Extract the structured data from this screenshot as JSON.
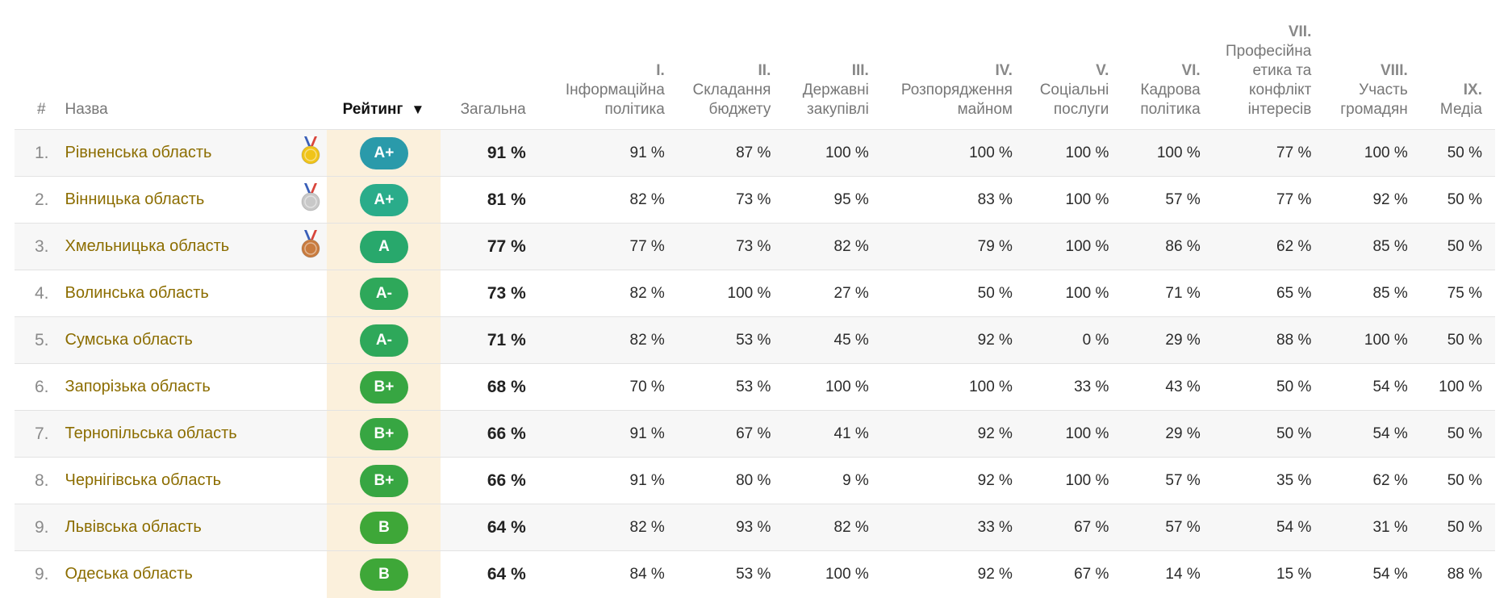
{
  "header": {
    "hash": "#",
    "name": "Назва",
    "rating": "Рейтинг",
    "total": "Загальна",
    "cols": [
      {
        "num": "I.",
        "l1": "Інформаційна",
        "l2": "політика",
        "l3": ""
      },
      {
        "num": "II.",
        "l1": "Складання",
        "l2": "бюджету",
        "l3": ""
      },
      {
        "num": "III.",
        "l1": "Державні",
        "l2": "закупівлі",
        "l3": ""
      },
      {
        "num": "IV.",
        "l1": "Розпорядження",
        "l2": "майном",
        "l3": ""
      },
      {
        "num": "V.",
        "l1": "Соціальні",
        "l2": "послуги",
        "l3": ""
      },
      {
        "num": "VI.",
        "l1": "Кадрова",
        "l2": "політика",
        "l3": ""
      },
      {
        "num": "VII.",
        "l1": "Професійна",
        "l2": "етика та",
        "l3": "конфлікт",
        "l4": "інтересів"
      },
      {
        "num": "VIII.",
        "l1": "Участь",
        "l2": "громадян",
        "l3": ""
      },
      {
        "num": "IX.",
        "l1": "Медіа",
        "l2": "",
        "l3": ""
      }
    ]
  },
  "colors": {
    "A+": "#2a9aaa",
    "A+2": "#2aac8a",
    "A": "#28a86c",
    "A-": "#2ea85a",
    "B+": "#37a642",
    "B": "#3ea738",
    "gold": "#f0c419",
    "silver": "#c8c8c8",
    "bronze": "#c97c3f"
  },
  "rows": [
    {
      "rank": "1.",
      "name": "Рівненська область",
      "medal": "gold",
      "grade": "A+",
      "color": "#2a9aaa",
      "total": "91 %",
      "v": [
        "91 %",
        "87 %",
        "100 %",
        "100 %",
        "100 %",
        "100 %",
        "77 %",
        "100 %",
        "50 %"
      ]
    },
    {
      "rank": "2.",
      "name": "Вінницька область",
      "medal": "silver",
      "grade": "A+",
      "color": "#2aac8a",
      "total": "81 %",
      "v": [
        "82 %",
        "73 %",
        "95 %",
        "83 %",
        "100 %",
        "57 %",
        "77 %",
        "92 %",
        "50 %"
      ]
    },
    {
      "rank": "3.",
      "name": "Хмельницька область",
      "medal": "bronze",
      "grade": "A",
      "color": "#28a86c",
      "total": "77 %",
      "v": [
        "77 %",
        "73 %",
        "82 %",
        "79 %",
        "100 %",
        "86 %",
        "62 %",
        "85 %",
        "50 %"
      ]
    },
    {
      "rank": "4.",
      "name": "Волинська область",
      "medal": "",
      "grade": "A-",
      "color": "#2ea85a",
      "total": "73 %",
      "v": [
        "82 %",
        "100 %",
        "27 %",
        "50 %",
        "100 %",
        "71 %",
        "65 %",
        "85 %",
        "75 %"
      ]
    },
    {
      "rank": "5.",
      "name": "Сумська область",
      "medal": "",
      "grade": "A-",
      "color": "#2ea85a",
      "total": "71 %",
      "v": [
        "82 %",
        "53 %",
        "45 %",
        "92 %",
        "0 %",
        "29 %",
        "88 %",
        "100 %",
        "50 %"
      ]
    },
    {
      "rank": "6.",
      "name": "Запорізька область",
      "medal": "",
      "grade": "B+",
      "color": "#37a642",
      "total": "68 %",
      "v": [
        "70 %",
        "53 %",
        "100 %",
        "100 %",
        "33 %",
        "43 %",
        "50 %",
        "54 %",
        "100 %"
      ]
    },
    {
      "rank": "7.",
      "name": "Тернопільська область",
      "medal": "",
      "grade": "B+",
      "color": "#37a642",
      "total": "66 %",
      "v": [
        "91 %",
        "67 %",
        "41 %",
        "92 %",
        "100 %",
        "29 %",
        "50 %",
        "54 %",
        "50 %"
      ]
    },
    {
      "rank": "8.",
      "name": "Чернігівська область",
      "medal": "",
      "grade": "B+",
      "color": "#37a642",
      "total": "66 %",
      "v": [
        "91 %",
        "80 %",
        "9 %",
        "92 %",
        "100 %",
        "57 %",
        "35 %",
        "62 %",
        "50 %"
      ]
    },
    {
      "rank": "9.",
      "name": "Львівська область",
      "medal": "",
      "grade": "B",
      "color": "#3ea738",
      "total": "64 %",
      "v": [
        "82 %",
        "93 %",
        "82 %",
        "33 %",
        "67 %",
        "57 %",
        "54 %",
        "31 %",
        "50 %"
      ]
    },
    {
      "rank": "9.",
      "name": "Одеська область",
      "medal": "",
      "grade": "B",
      "color": "#3ea738",
      "total": "64 %",
      "v": [
        "84 %",
        "53 %",
        "100 %",
        "92 %",
        "67 %",
        "14 %",
        "15 %",
        "54 %",
        "88 %"
      ]
    }
  ]
}
